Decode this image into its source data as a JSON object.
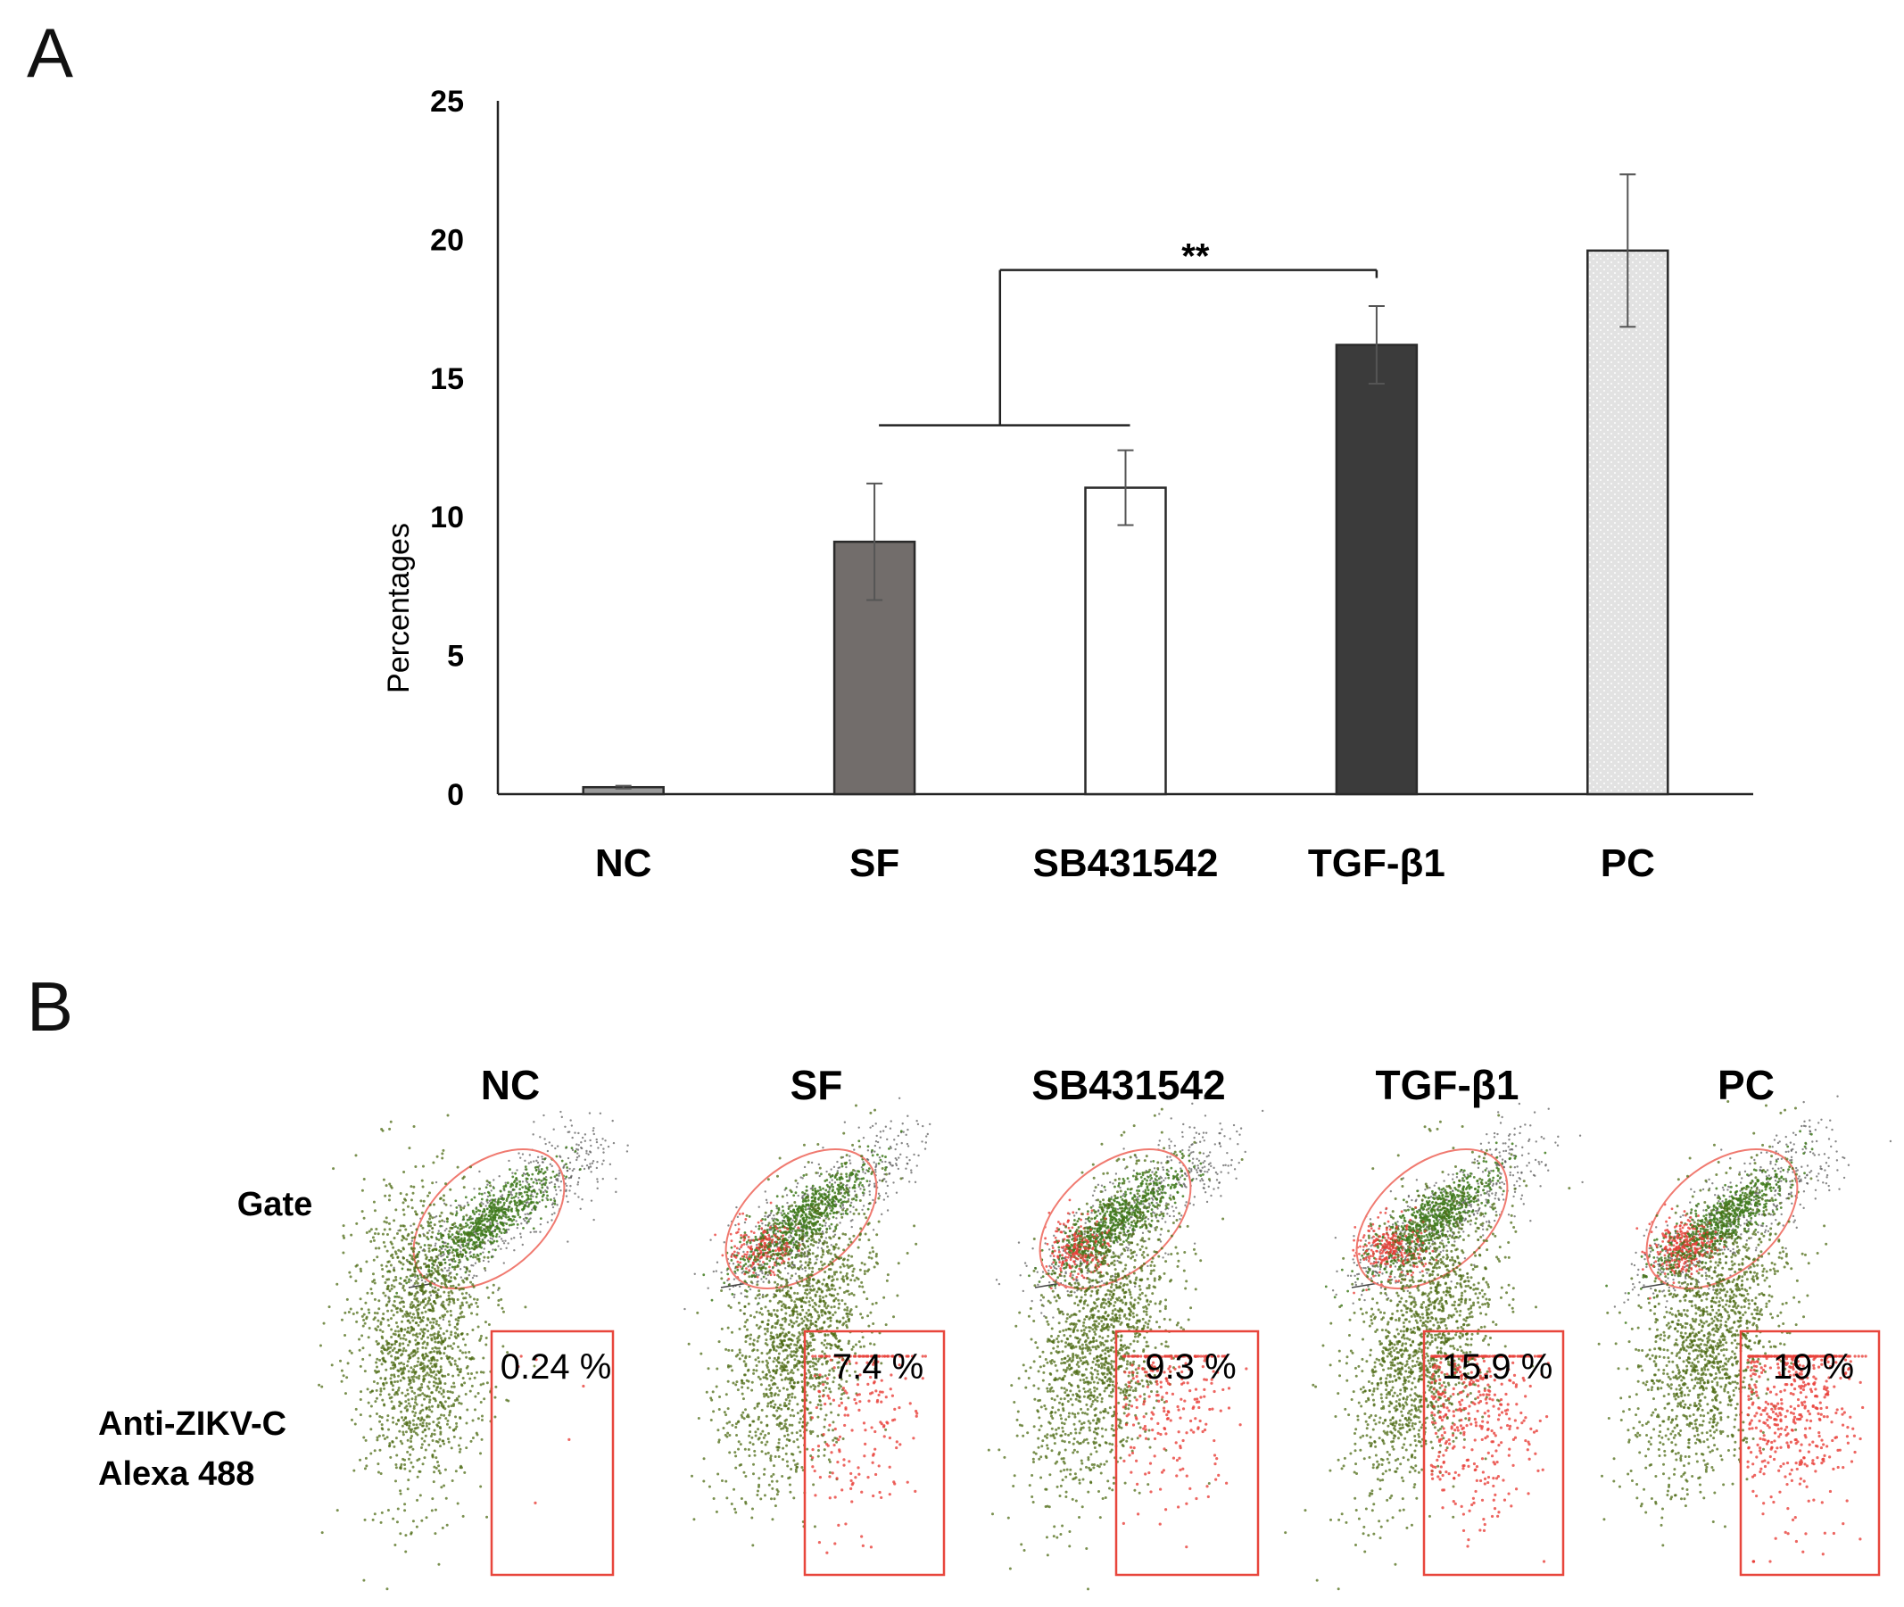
{
  "panels": {
    "a_label": "A",
    "b_label": "B"
  },
  "chart_data": [
    {
      "type": "bar",
      "panel": "A",
      "ylabel": "Percentages",
      "ylim": [
        0,
        25
      ],
      "yticks": [
        0,
        5,
        10,
        15,
        20,
        25
      ],
      "categories": [
        "NC",
        "SF",
        "SB431542",
        "TGF-β1",
        "PC"
      ],
      "values": [
        0.25,
        9.1,
        11.05,
        16.2,
        19.6
      ],
      "errors": [
        0.05,
        2.1,
        1.35,
        1.4,
        2.75
      ],
      "bar_colors": [
        "#9a9a9a",
        "#726d6b",
        "#ffffff",
        "#3b3b3b",
        "#e0e0e0"
      ],
      "significance": {
        "label": "**",
        "from": [
          "SF",
          "SB431542"
        ],
        "to": "TGF-β1"
      },
      "grid": false
    },
    {
      "type": "scatter",
      "panel": "B",
      "columns": [
        "NC",
        "SF",
        "SB431542",
        "TGF-β1",
        "PC"
      ],
      "row_labels": {
        "gate": "Gate",
        "stain_line1": "Anti-ZIKV-C",
        "stain_line2": "Alexa 488"
      },
      "gate_percentages": [
        "0.24 %",
        "7.4 %",
        "9.3 %",
        "15.9 %",
        "19 %"
      ],
      "positive_fraction": [
        0.0024,
        0.074,
        0.093,
        0.159,
        0.19
      ],
      "colors": {
        "negative": "#4e6b14",
        "positive": "#e8403a",
        "gate": "#f07a70",
        "ungated": "#555555"
      }
    }
  ]
}
